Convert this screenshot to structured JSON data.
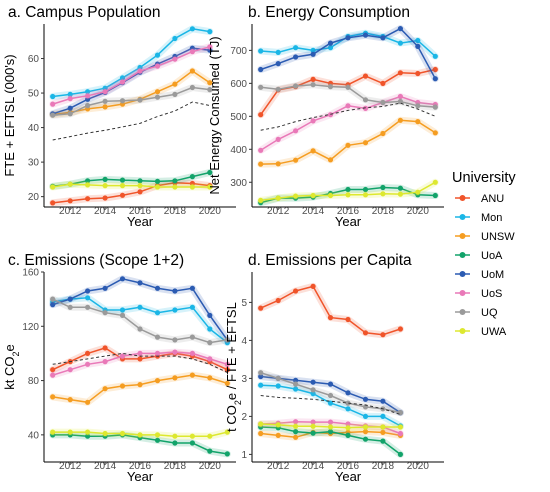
{
  "colors": {
    "ANU": "#f0542a",
    "Mon": "#1ab6e6",
    "UNSW": "#f59d21",
    "UoA": "#12a36a",
    "UoM": "#2b5bb2",
    "UoS": "#e979b8",
    "UQ": "#9a9a9a",
    "UWA": "#dde82f",
    "average": "#333333"
  },
  "legend": {
    "title": "University",
    "items": [
      "ANU",
      "Mon",
      "UNSW",
      "UoA",
      "UoM",
      "UoS",
      "UQ",
      "UWA"
    ]
  },
  "chart_data": [
    {
      "type": "line",
      "title": "a. Campus Population",
      "xlabel": "Year",
      "ylabel": "FTE + EFTSL (000's)",
      "ylabel_sub": "",
      "xlim": [
        2010.5,
        2021.5
      ],
      "ylim": [
        17,
        70
      ],
      "yticks": [
        20,
        30,
        40,
        50,
        60
      ],
      "xticks": [
        2012,
        2014,
        2016,
        2018,
        2020
      ],
      "x": [
        2011,
        2012,
        2013,
        2014,
        2015,
        2016,
        2017,
        2018,
        2019,
        2020,
        2021
      ],
      "series": [
        {
          "name": "ANU",
          "values": [
            18.2,
            18.8,
            19.4,
            19.6,
            20.4,
            21.4,
            23.2,
            24.0,
            23.8,
            23.2,
            null
          ]
        },
        {
          "name": "Mon",
          "values": [
            49.0,
            49.6,
            50.4,
            51.4,
            54.4,
            57.4,
            61.0,
            65.8,
            68.6,
            67.8,
            null
          ]
        },
        {
          "name": "UNSW",
          "values": [
            43.8,
            44.4,
            45.4,
            46.0,
            46.8,
            48.2,
            50.4,
            52.6,
            56.4,
            53.0,
            null
          ]
        },
        {
          "name": "UoA",
          "values": [
            23.0,
            23.6,
            24.6,
            25.0,
            24.8,
            24.6,
            24.4,
            24.6,
            25.8,
            27.0,
            null
          ]
        },
        {
          "name": "UoM",
          "values": [
            44.0,
            45.6,
            48.2,
            50.2,
            53.0,
            56.0,
            58.4,
            60.6,
            63.0,
            62.4,
            null
          ]
        },
        {
          "name": "UoS",
          "values": [
            46.8,
            48.4,
            49.2,
            50.4,
            53.2,
            56.4,
            57.8,
            59.8,
            62.0,
            63.4,
            null
          ]
        },
        {
          "name": "UQ",
          "values": [
            43.6,
            44.0,
            46.4,
            47.6,
            47.8,
            48.0,
            48.8,
            49.6,
            51.6,
            51.0,
            null
          ]
        },
        {
          "name": "UWA",
          "values": [
            22.8,
            23.6,
            23.4,
            23.2,
            23.2,
            23.2,
            22.8,
            22.8,
            22.8,
            22.8,
            null
          ]
        },
        {
          "name": "average",
          "values": [
            36.4,
            37.4,
            38.4,
            39.2,
            40.2,
            41.2,
            43.2,
            44.8,
            47.4,
            46.4,
            null
          ]
        }
      ]
    },
    {
      "type": "line",
      "title": "b. Energy Consumption",
      "xlabel": "Year",
      "ylabel": "Net Energy Consumed (TJ)",
      "ylabel_sub": "",
      "xlim": [
        2010.5,
        2021.5
      ],
      "ylim": [
        225,
        780
      ],
      "yticks": [
        300,
        400,
        500,
        600,
        700
      ],
      "xticks": [
        2012,
        2014,
        2016,
        2018,
        2020
      ],
      "x": [
        2011,
        2012,
        2013,
        2014,
        2015,
        2016,
        2017,
        2018,
        2019,
        2020,
        2021
      ],
      "series": [
        {
          "name": "ANU",
          "values": [
            505,
            580,
            590,
            612,
            600,
            596,
            622,
            600,
            632,
            630,
            642
          ]
        },
        {
          "name": "Mon",
          "values": [
            698,
            694,
            708,
            700,
            708,
            742,
            752,
            742,
            722,
            730,
            682
          ]
        },
        {
          "name": "UNSW",
          "values": [
            355,
            356,
            367,
            395,
            368,
            412,
            420,
            448,
            488,
            484,
            450
          ]
        },
        {
          "name": "UoA",
          "values": [
            238,
            252,
            252,
            255,
            266,
            278,
            278,
            284,
            282,
            262,
            260
          ]
        },
        {
          "name": "UoM",
          "values": [
            642,
            660,
            680,
            688,
            722,
            738,
            746,
            738,
            766,
            712,
            614
          ]
        },
        {
          "name": "UoS",
          "values": [
            397,
            430,
            456,
            486,
            505,
            532,
            524,
            542,
            560,
            542,
            536
          ]
        },
        {
          "name": "UQ",
          "values": [
            588,
            582,
            592,
            596,
            590,
            588,
            550,
            542,
            545,
            532,
            528
          ]
        },
        {
          "name": "UWA",
          "values": [
            245,
            252,
            258,
            260,
            260,
            262,
            262,
            265,
            264,
            270,
            300
          ]
        },
        {
          "name": "average",
          "values": [
            458,
            468,
            484,
            496,
            506,
            518,
            526,
            530,
            540,
            522,
            500
          ]
        }
      ]
    },
    {
      "type": "line",
      "title": "c. Emissions (Scope 1+2)",
      "xlabel": "Year",
      "ylabel": "kt CO",
      "ylabel_sub": "2",
      "ylabel_tail": "e",
      "xlim": [
        2010.5,
        2021.5
      ],
      "ylim": [
        20,
        160
      ],
      "yticks": [
        40,
        80,
        120,
        160
      ],
      "xticks": [
        2012,
        2014,
        2016,
        2018,
        2020
      ],
      "x": [
        2011,
        2012,
        2013,
        2014,
        2015,
        2016,
        2017,
        2018,
        2019,
        2020,
        2021
      ],
      "series": [
        {
          "name": "ANU",
          "values": [
            88,
            94,
            100,
            104,
            96,
            96,
            98,
            100,
            98,
            94,
            88
          ]
        },
        {
          "name": "Mon",
          "values": [
            138,
            140,
            141,
            132,
            132,
            134,
            130,
            132,
            134,
            118,
            108
          ]
        },
        {
          "name": "UNSW",
          "values": [
            68,
            66,
            64,
            74,
            76,
            77,
            80,
            82,
            84,
            82,
            78
          ]
        },
        {
          "name": "UoA",
          "values": [
            40,
            40,
            39,
            39,
            40,
            38,
            36,
            34,
            34,
            28,
            26
          ]
        },
        {
          "name": "UoM",
          "values": [
            136,
            140,
            146,
            148,
            155,
            152,
            148,
            146,
            148,
            128,
            110
          ]
        },
        {
          "name": "UoS",
          "values": [
            84,
            88,
            92,
            94,
            98,
            100,
            100,
            101,
            100,
            96,
            92
          ]
        },
        {
          "name": "UQ",
          "values": [
            140,
            134,
            134,
            130,
            128,
            118,
            112,
            110,
            112,
            108,
            110
          ]
        },
        {
          "name": "UWA",
          "values": [
            42,
            42,
            42,
            41,
            41,
            40,
            40,
            39,
            39,
            39,
            42
          ]
        },
        {
          "name": "average",
          "values": [
            92,
            94,
            96,
            98,
            100,
            98,
            98,
            98,
            96,
            92,
            86
          ]
        }
      ]
    },
    {
      "type": "line",
      "title": "d. Emissions per Capita",
      "xlabel": "Year",
      "ylabel": "t CO",
      "ylabel_sub": "2",
      "ylabel_tail": "e / FTE + EFTSL",
      "xlim": [
        2010.5,
        2021.5
      ],
      "ylim": [
        0.8,
        5.8
      ],
      "yticks": [
        1,
        2,
        3,
        4,
        5
      ],
      "xticks": [
        2012,
        2014,
        2016,
        2018,
        2020
      ],
      "x": [
        2011,
        2012,
        2013,
        2014,
        2015,
        2016,
        2017,
        2018,
        2019,
        2020,
        2021
      ],
      "series": [
        {
          "name": "ANU",
          "values": [
            4.85,
            5.05,
            5.3,
            5.42,
            4.6,
            4.55,
            4.2,
            4.15,
            4.3,
            null,
            null
          ]
        },
        {
          "name": "Mon",
          "values": [
            2.82,
            2.8,
            2.72,
            2.6,
            2.35,
            2.2,
            2.0,
            2.0,
            1.75,
            null,
            null
          ]
        },
        {
          "name": "UNSW",
          "values": [
            1.55,
            1.5,
            1.45,
            1.58,
            1.55,
            1.58,
            1.6,
            1.58,
            1.5,
            null,
            null
          ]
        },
        {
          "name": "UoA",
          "values": [
            1.72,
            1.7,
            1.6,
            1.56,
            1.6,
            1.5,
            1.4,
            1.35,
            1.0,
            null,
            null
          ]
        },
        {
          "name": "UoM",
          "values": [
            3.05,
            3.0,
            2.95,
            2.9,
            2.85,
            2.62,
            2.45,
            2.4,
            2.1,
            null,
            null
          ]
        },
        {
          "name": "UoS",
          "values": [
            1.8,
            1.82,
            1.86,
            1.85,
            1.85,
            1.8,
            1.75,
            1.72,
            1.55,
            null,
            null
          ]
        },
        {
          "name": "UQ",
          "values": [
            3.15,
            3.0,
            2.85,
            2.7,
            2.55,
            2.35,
            2.25,
            2.2,
            2.1,
            null,
            null
          ]
        },
        {
          "name": "UWA",
          "values": [
            1.8,
            1.78,
            1.74,
            1.74,
            1.72,
            1.7,
            1.72,
            1.72,
            1.72,
            null,
            null
          ]
        },
        {
          "name": "average",
          "values": [
            2.55,
            2.5,
            2.48,
            2.45,
            2.4,
            2.35,
            2.3,
            2.2,
            2.05,
            null,
            null
          ]
        }
      ]
    }
  ]
}
